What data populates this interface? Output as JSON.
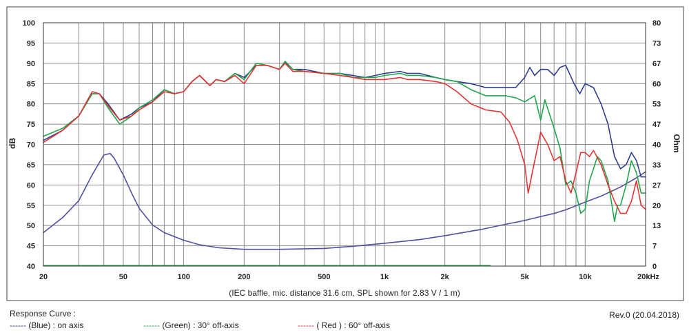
{
  "chart_data": {
    "type": "line",
    "xlabel": "",
    "x_scale": "log",
    "xlim": [
      20,
      20000
    ],
    "x_ticks": [
      {
        "value": 20,
        "label": "20"
      },
      {
        "value": 50,
        "label": "50"
      },
      {
        "value": 100,
        "label": "100"
      },
      {
        "value": 200,
        "label": "200"
      },
      {
        "value": 500,
        "label": "500"
      },
      {
        "value": 1000,
        "label": "1k"
      },
      {
        "value": 2000,
        "label": "2k"
      },
      {
        "value": 5000,
        "label": "5k"
      },
      {
        "value": 10000,
        "label": "10k"
      },
      {
        "value": 20000,
        "label": "20kHz"
      }
    ],
    "ylabel_left": "dB",
    "ylim_left": [
      40,
      100
    ],
    "y_ticks_left": [
      "40",
      "45",
      "50",
      "55",
      "60",
      "65",
      "70",
      "75",
      "80",
      "85",
      "90",
      "95",
      "100"
    ],
    "ylabel_right": "Ohm",
    "ylim_right": [
      0,
      80
    ],
    "y_ticks_right": [
      "0",
      "7",
      "13",
      "20",
      "27",
      "33",
      "40",
      "47",
      "53",
      "60",
      "67",
      "73",
      "80"
    ],
    "grid": true,
    "caption": "(IEC baffle, mic. distance 31.6 cm, SPL shown for 2.83 V / 1 m)",
    "series": [
      {
        "key": "on_axis",
        "color": "#2e3d8f",
        "axis": "left",
        "points": [
          [
            20,
            71
          ],
          [
            25,
            73.5
          ],
          [
            30,
            77
          ],
          [
            35,
            82.5
          ],
          [
            38,
            82.5
          ],
          [
            42,
            80
          ],
          [
            48,
            76
          ],
          [
            55,
            77.5
          ],
          [
            60,
            79
          ],
          [
            70,
            80.5
          ],
          [
            80,
            83.5
          ],
          [
            90,
            82.5
          ],
          [
            100,
            83
          ],
          [
            110,
            85.5
          ],
          [
            120,
            87
          ],
          [
            135,
            84.5
          ],
          [
            145,
            86
          ],
          [
            160,
            85.5
          ],
          [
            180,
            87.5
          ],
          [
            200,
            86.5
          ],
          [
            230,
            89.5
          ],
          [
            260,
            89.5
          ],
          [
            300,
            88.5
          ],
          [
            320,
            90.3
          ],
          [
            350,
            88.5
          ],
          [
            400,
            88.5
          ],
          [
            500,
            87.5
          ],
          [
            600,
            87.5
          ],
          [
            700,
            87
          ],
          [
            800,
            86.5
          ],
          [
            900,
            87
          ],
          [
            1000,
            87.5
          ],
          [
            1200,
            88
          ],
          [
            1300,
            87.5
          ],
          [
            1500,
            87.5
          ],
          [
            1800,
            86.5
          ],
          [
            2000,
            86
          ],
          [
            2300,
            85.5
          ],
          [
            2700,
            85
          ],
          [
            3200,
            84
          ],
          [
            3800,
            84
          ],
          [
            4500,
            84
          ],
          [
            5000,
            86.5
          ],
          [
            5300,
            89
          ],
          [
            5600,
            87
          ],
          [
            6000,
            88.5
          ],
          [
            6500,
            88.5
          ],
          [
            7000,
            87
          ],
          [
            7500,
            89
          ],
          [
            8000,
            89.5
          ],
          [
            8800,
            85
          ],
          [
            9400,
            82.5
          ],
          [
            10000,
            85
          ],
          [
            11000,
            84
          ],
          [
            12000,
            80
          ],
          [
            13000,
            75
          ],
          [
            14000,
            67
          ],
          [
            15000,
            64
          ],
          [
            16000,
            65
          ],
          [
            17000,
            68
          ],
          [
            18000,
            66
          ],
          [
            19000,
            62
          ],
          [
            20000,
            62
          ]
        ]
      },
      {
        "key": "off_axis_30",
        "color": "#1fa64a",
        "axis": "left",
        "points": [
          [
            20,
            72
          ],
          [
            25,
            74
          ],
          [
            30,
            77
          ],
          [
            35,
            82.5
          ],
          [
            38,
            82.5
          ],
          [
            42,
            79
          ],
          [
            48,
            75
          ],
          [
            55,
            77
          ],
          [
            60,
            79
          ],
          [
            70,
            81
          ],
          [
            80,
            83.5
          ],
          [
            90,
            82.5
          ],
          [
            100,
            83
          ],
          [
            110,
            85.5
          ],
          [
            120,
            87
          ],
          [
            135,
            84.5
          ],
          [
            145,
            86
          ],
          [
            160,
            85.5
          ],
          [
            180,
            87.5
          ],
          [
            200,
            86
          ],
          [
            230,
            90
          ],
          [
            260,
            89.5
          ],
          [
            300,
            88.5
          ],
          [
            320,
            90.5
          ],
          [
            350,
            88.5
          ],
          [
            400,
            88
          ],
          [
            500,
            87.5
          ],
          [
            600,
            87.5
          ],
          [
            700,
            86.5
          ],
          [
            800,
            86.5
          ],
          [
            900,
            86.5
          ],
          [
            1000,
            87
          ],
          [
            1200,
            87.5
          ],
          [
            1300,
            87
          ],
          [
            1500,
            87
          ],
          [
            1800,
            86.5
          ],
          [
            2000,
            86
          ],
          [
            2300,
            85.5
          ],
          [
            2700,
            83.5
          ],
          [
            3200,
            82
          ],
          [
            4000,
            82
          ],
          [
            4500,
            81.5
          ],
          [
            5000,
            80.5
          ],
          [
            5600,
            82
          ],
          [
            6000,
            76
          ],
          [
            6300,
            81
          ],
          [
            7000,
            74
          ],
          [
            7500,
            69
          ],
          [
            8000,
            60
          ],
          [
            8500,
            61
          ],
          [
            9000,
            58
          ],
          [
            9500,
            53
          ],
          [
            10000,
            54
          ],
          [
            10500,
            61
          ],
          [
            11000,
            64
          ],
          [
            11500,
            67
          ],
          [
            12000,
            66
          ],
          [
            13000,
            61
          ],
          [
            14000,
            51
          ],
          [
            14500,
            55
          ],
          [
            15000,
            55
          ],
          [
            16000,
            60
          ],
          [
            17000,
            66
          ],
          [
            18000,
            63
          ],
          [
            19000,
            58
          ],
          [
            20000,
            58
          ]
        ]
      },
      {
        "key": "off_axis_60",
        "color": "#e53333",
        "axis": "left",
        "points": [
          [
            20,
            70.5
          ],
          [
            25,
            73.5
          ],
          [
            30,
            77
          ],
          [
            35,
            83
          ],
          [
            38,
            82.5
          ],
          [
            42,
            79.5
          ],
          [
            48,
            76
          ],
          [
            55,
            77
          ],
          [
            60,
            78.5
          ],
          [
            70,
            80.5
          ],
          [
            80,
            83
          ],
          [
            90,
            82.5
          ],
          [
            100,
            83
          ],
          [
            110,
            85.5
          ],
          [
            120,
            87
          ],
          [
            135,
            84.5
          ],
          [
            145,
            86
          ],
          [
            160,
            85.5
          ],
          [
            180,
            87
          ],
          [
            200,
            85
          ],
          [
            230,
            89.5
          ],
          [
            260,
            89.5
          ],
          [
            300,
            88.5
          ],
          [
            320,
            90
          ],
          [
            350,
            88
          ],
          [
            400,
            88
          ],
          [
            500,
            87.5
          ],
          [
            600,
            87
          ],
          [
            700,
            86.5
          ],
          [
            800,
            86
          ],
          [
            900,
            86
          ],
          [
            1000,
            86
          ],
          [
            1200,
            86.5
          ],
          [
            1300,
            86
          ],
          [
            1500,
            86
          ],
          [
            1800,
            85.5
          ],
          [
            2000,
            85
          ],
          [
            2300,
            83
          ],
          [
            2700,
            80
          ],
          [
            3200,
            78.5
          ],
          [
            3800,
            78
          ],
          [
            4200,
            75.5
          ],
          [
            4600,
            71
          ],
          [
            5000,
            65
          ],
          [
            5200,
            58
          ],
          [
            5500,
            64
          ],
          [
            6000,
            73
          ],
          [
            6500,
            70
          ],
          [
            7000,
            66
          ],
          [
            7500,
            67
          ],
          [
            8000,
            61
          ],
          [
            8500,
            58
          ],
          [
            9000,
            63
          ],
          [
            9500,
            68
          ],
          [
            10000,
            68
          ],
          [
            10500,
            67
          ],
          [
            11000,
            68.5
          ],
          [
            12000,
            65
          ],
          [
            13000,
            60
          ],
          [
            14000,
            56
          ],
          [
            15000,
            53
          ],
          [
            16000,
            53
          ],
          [
            17000,
            56
          ],
          [
            18000,
            61
          ],
          [
            19000,
            55
          ],
          [
            20000,
            54
          ]
        ]
      },
      {
        "key": "impedance",
        "color": "#4f4f9e",
        "axis": "right",
        "points": [
          [
            20,
            11
          ],
          [
            25,
            16
          ],
          [
            30,
            21.5
          ],
          [
            35,
            30
          ],
          [
            40,
            36.5
          ],
          [
            43,
            37
          ],
          [
            45,
            35.5
          ],
          [
            50,
            30
          ],
          [
            55,
            24
          ],
          [
            60,
            19
          ],
          [
            70,
            13.5
          ],
          [
            80,
            11
          ],
          [
            100,
            8.5
          ],
          [
            120,
            7
          ],
          [
            150,
            6
          ],
          [
            200,
            5.5
          ],
          [
            300,
            5.5
          ],
          [
            500,
            5.8
          ],
          [
            700,
            6.5
          ],
          [
            1000,
            7.5
          ],
          [
            1500,
            8.7
          ],
          [
            2000,
            10
          ],
          [
            3000,
            12
          ],
          [
            4000,
            13.7
          ],
          [
            5000,
            15
          ],
          [
            6000,
            16.3
          ],
          [
            7000,
            17.3
          ],
          [
            8000,
            18.5
          ],
          [
            10000,
            21
          ],
          [
            12000,
            23
          ],
          [
            15000,
            26
          ],
          [
            18000,
            29
          ],
          [
            20000,
            31
          ]
        ]
      }
    ]
  },
  "legend": {
    "title": "Response Curve :",
    "items": [
      {
        "dash": "------",
        "label": "(Blue)  : on axis",
        "color": "#2e3d8f"
      },
      {
        "dash": "------",
        "label": "(Green) : 30° off-axis",
        "color": "#1fa64a"
      },
      {
        "dash": "------",
        "label": "( Red ) : 60° off-axis",
        "color": "#e53333"
      }
    ]
  },
  "revision": "Rev.0 (20.04.2018)"
}
